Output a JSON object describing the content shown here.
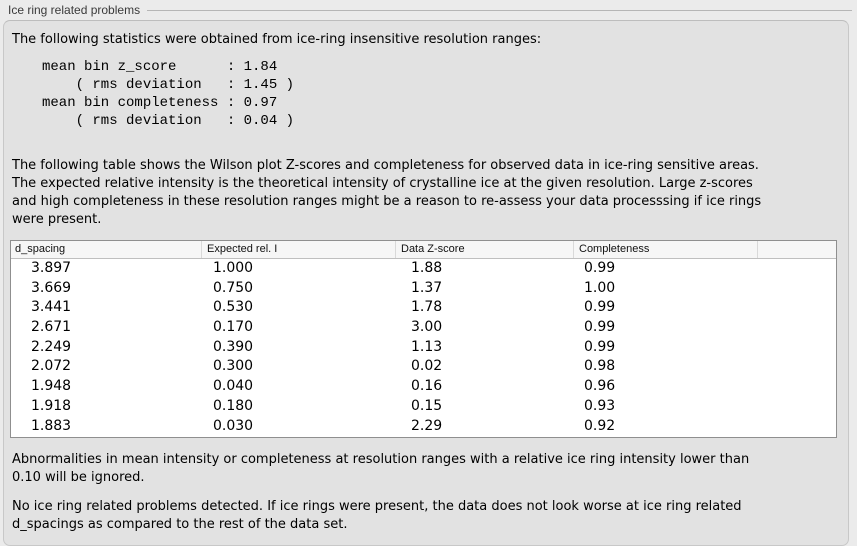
{
  "panel": {
    "caption": "Ice ring related problems"
  },
  "intro_text": "The following statistics were obtained from ice-ring insensitive resolution ranges:",
  "stats_block": "mean bin z_score      : 1.84\n    ( rms deviation   : 1.45 )\nmean bin completeness : 0.97\n    ( rms deviation   : 0.04 )",
  "table_description": "The following table shows the Wilson plot Z-scores and completeness for observed data in ice-ring sensitive areas.\nThe expected relative intensity is the theoretical intensity of crystalline ice at the given resolution. Large z-scores\nand high completeness in these resolution ranges might be a reason to re-assess your data processsing if ice rings\nwere present.",
  "table": {
    "columns": [
      "d_spacing",
      "Expected rel. I",
      "Data Z-score",
      "Completeness"
    ],
    "rows": [
      [
        "3.897",
        "1.000",
        "1.88",
        "0.99"
      ],
      [
        "3.669",
        "0.750",
        "1.37",
        "1.00"
      ],
      [
        "3.441",
        "0.530",
        "1.78",
        "0.99"
      ],
      [
        "2.671",
        "0.170",
        "3.00",
        "0.99"
      ],
      [
        "2.249",
        "0.390",
        "1.13",
        "0.99"
      ],
      [
        "2.072",
        "0.300",
        "0.02",
        "0.98"
      ],
      [
        "1.948",
        "0.040",
        "0.16",
        "0.96"
      ],
      [
        "1.918",
        "0.180",
        "0.15",
        "0.93"
      ],
      [
        "1.883",
        "0.030",
        "2.29",
        "0.92"
      ]
    ]
  },
  "ignore_note": "Abnormalities in mean intensity or completeness at resolution ranges with a relative ice ring intensity lower than\n0.10 will be ignored.",
  "conclusion": "No ice ring related problems detected. If ice rings were present, the data does not look worse at ice ring related\nd_spacings as compared to the rest of the data set.",
  "colors": {
    "page_background": "#ebebeb",
    "panel_background": "#e2e2e2",
    "table_background": "#ffffff",
    "table_header_background": "#f6f6f6",
    "table_border": "#8f8f8f"
  }
}
